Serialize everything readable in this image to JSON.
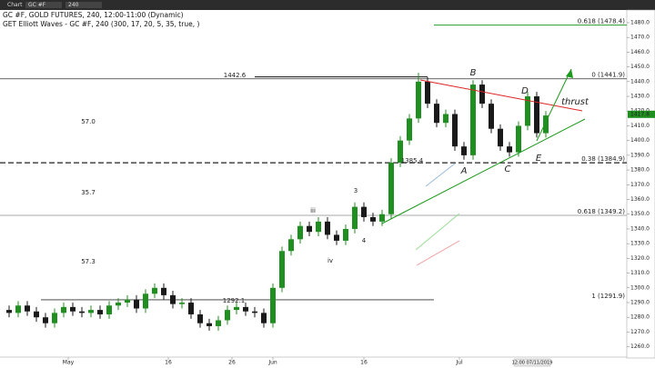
{
  "toolbar": {
    "window": "Chart",
    "symbol": "GC #F",
    "interval": "240"
  },
  "chart_data": {
    "type": "candlestick",
    "title": "GC #F, GOLD FUTURES, 240, 12:00-11:00 (Dynamic)",
    "subtitle": "GET Elliott Waves - GC #F, 240 (300, 17, 20, 5, 35, true, )",
    "up_color": "#1f8f1f",
    "down_color": "#1a1a1a",
    "open": [
      1285,
      1283,
      1288,
      1284,
      1280,
      1276,
      1283,
      1287,
      1284,
      1283,
      1285,
      1282,
      1288,
      1290,
      1292,
      1286,
      1296,
      1300,
      1295,
      1289,
      1290,
      1282,
      1276,
      1274,
      1278,
      1285,
      1287,
      1284,
      1283,
      1276,
      1300,
      1325,
      1333,
      1342,
      1338,
      1345,
      1336,
      1332,
      1340,
      1355,
      1348,
      1345,
      1350,
      1385,
      1400,
      1415,
      1440,
      1425,
      1412,
      1418,
      1396,
      1390,
      1438,
      1425,
      1408,
      1396,
      1392,
      1410,
      1430,
      1405
    ],
    "high": [
      1288,
      1291,
      1291,
      1287,
      1283,
      1286,
      1290,
      1290,
      1287,
      1288,
      1288,
      1291,
      1293,
      1295,
      1295,
      1299,
      1303,
      1303,
      1298,
      1293,
      1293,
      1285,
      1279,
      1281,
      1288,
      1290,
      1290,
      1287,
      1286,
      1303,
      1328,
      1336,
      1345,
      1345,
      1348,
      1348,
      1339,
      1343,
      1358,
      1358,
      1351,
      1353,
      1388,
      1403,
      1418,
      1446,
      1443,
      1428,
      1421,
      1421,
      1399,
      1441,
      1441,
      1428,
      1411,
      1399,
      1413,
      1433,
      1433,
      1420
    ],
    "low": [
      1280,
      1280,
      1281,
      1277,
      1273,
      1273,
      1280,
      1281,
      1280,
      1280,
      1279,
      1279,
      1285,
      1287,
      1283,
      1283,
      1293,
      1292,
      1286,
      1286,
      1279,
      1273,
      1271,
      1271,
      1275,
      1282,
      1281,
      1280,
      1273,
      1273,
      1297,
      1322,
      1330,
      1335,
      1335,
      1333,
      1329,
      1329,
      1337,
      1345,
      1342,
      1342,
      1347,
      1382,
      1397,
      1412,
      1422,
      1409,
      1409,
      1393,
      1387,
      1387,
      1422,
      1405,
      1393,
      1389,
      1389,
      1407,
      1402,
      1402
    ],
    "close": [
      1283,
      1288,
      1284,
      1280,
      1276,
      1283,
      1287,
      1284,
      1283,
      1285,
      1282,
      1288,
      1290,
      1292,
      1286,
      1296,
      1300,
      1295,
      1289,
      1290,
      1282,
      1276,
      1274,
      1278,
      1285,
      1287,
      1284,
      1283,
      1276,
      1300,
      1325,
      1333,
      1342,
      1338,
      1345,
      1336,
      1332,
      1340,
      1355,
      1348,
      1345,
      1350,
      1385,
      1400,
      1415,
      1440,
      1425,
      1412,
      1418,
      1396,
      1390,
      1438,
      1425,
      1408,
      1396,
      1392,
      1410,
      1430,
      1405,
      1417
    ],
    "last_price": 1417.8,
    "xlim": [
      -0.5,
      59.5
    ],
    "xticks": [
      {
        "value": 6.5,
        "label": "May"
      },
      {
        "value": 17.5,
        "label": "16"
      },
      {
        "value": 24.5,
        "label": "26"
      },
      {
        "value": 29,
        "label": "Jun"
      },
      {
        "value": 39,
        "label": "16"
      },
      {
        "value": 49.5,
        "label": "Jul"
      }
    ],
    "cursor_label": "12:00 07/11/2019",
    "ylim": [
      1253,
      1488
    ],
    "yticks": [
      {
        "value": 1260,
        "label": "1260.0"
      },
      {
        "value": 1270,
        "label": "1270.0"
      },
      {
        "value": 1280,
        "label": "1280.0"
      },
      {
        "value": 1290,
        "label": "1290.0"
      },
      {
        "value": 1300,
        "label": "1300.0"
      },
      {
        "value": 1310,
        "label": "1310.0"
      },
      {
        "value": 1320,
        "label": "1320.0"
      },
      {
        "value": 1330,
        "label": "1330.0"
      },
      {
        "value": 1340,
        "label": "1340.0"
      },
      {
        "value": 1350,
        "label": "1350.0"
      },
      {
        "value": 1360,
        "label": "1360.0"
      },
      {
        "value": 1370,
        "label": "1370.0"
      },
      {
        "value": 1380,
        "label": "1380.0"
      },
      {
        "value": 1390,
        "label": "1390.0"
      },
      {
        "value": 1400,
        "label": "1400.0"
      },
      {
        "value": 1410,
        "label": "1410.0"
      },
      {
        "value": 1420,
        "label": "1420.0"
      },
      {
        "value": 1430,
        "label": "1430.0"
      },
      {
        "value": 1440,
        "label": "1440.0"
      },
      {
        "value": 1450,
        "label": "1450.0"
      },
      {
        "value": 1460,
        "label": "1460.0"
      },
      {
        "value": 1470,
        "label": "1470.0"
      },
      {
        "value": 1480,
        "label": "1480.0"
      }
    ],
    "levels": [
      {
        "value": 1478.4,
        "label": "0.618 (1478.4)",
        "color": "#2a9a2a"
      },
      {
        "value": 1441.9,
        "label": "0 (1441.9)",
        "color": "#333333"
      },
      {
        "value": 1384.9,
        "label": "0.38 (1384.9)",
        "color": "#555555"
      },
      {
        "value": 1349.2,
        "label": "0.618 (1349.2)",
        "color": "#bbbbbb"
      },
      {
        "value": 1291.9,
        "label": "1 (1291.9)",
        "color": "#333333"
      }
    ],
    "annotations": [
      "1442.6",
      "1292.1",
      "1385.4",
      "57.0",
      "35.7",
      "57.3",
      "A",
      "B",
      "C",
      "D",
      "E",
      "thrust",
      "3",
      "4",
      "iii",
      "iv"
    ]
  }
}
